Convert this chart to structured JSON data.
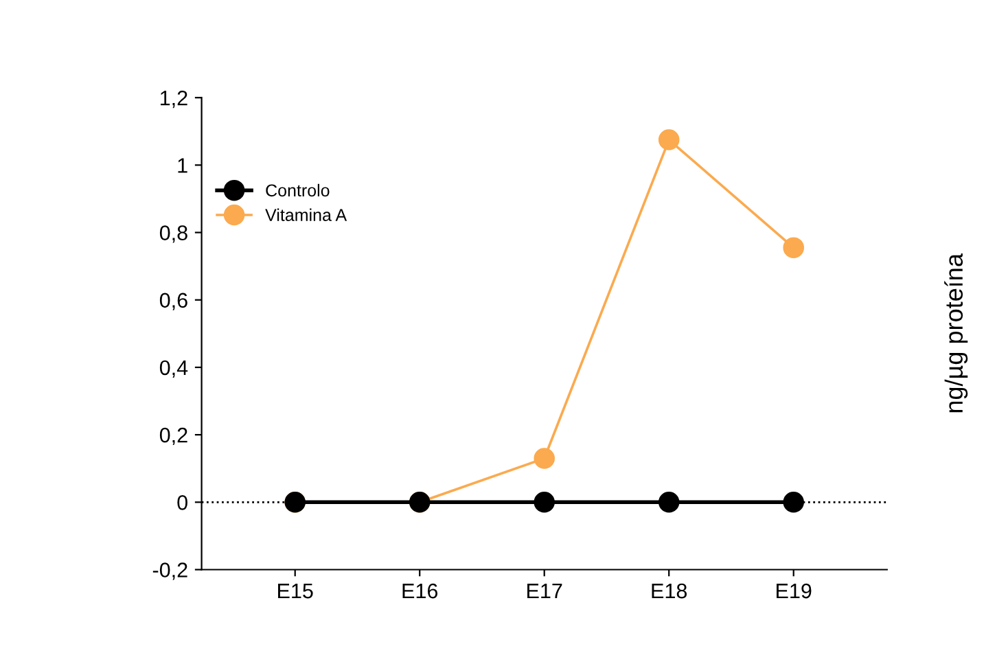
{
  "chart_data": {
    "type": "line",
    "categories": [
      "E15",
      "E16",
      "E17",
      "E18",
      "E19"
    ],
    "series": [
      {
        "name": "Controlo",
        "color": "#000000",
        "values": [
          0,
          0,
          0,
          0,
          0
        ]
      },
      {
        "name": "Vitamina A",
        "color": "#fbaa4f",
        "values": [
          0,
          0,
          0.13,
          1.075,
          0.755
        ]
      }
    ],
    "ylabel": "ng/µg proteína",
    "ylim": [
      -0.2,
      1.2
    ],
    "yticks": [
      {
        "value": -0.2,
        "label": "-0,2"
      },
      0,
      {
        "value": 0.2,
        "label": "0,2"
      },
      {
        "value": 0.4,
        "label": "0,4"
      },
      {
        "value": 0.6,
        "label": "0,6"
      },
      {
        "value": 0.8,
        "label": "0,8"
      },
      1,
      {
        "value": 1.2,
        "label": "1,2"
      }
    ],
    "ref_lines": [
      {
        "axis": "y",
        "value": 0,
        "label": null,
        "color": "#000000",
        "line_style": "dotted"
      }
    ],
    "marker": "circle",
    "line_style": "solid",
    "grid": false,
    "legend": "top left"
  }
}
